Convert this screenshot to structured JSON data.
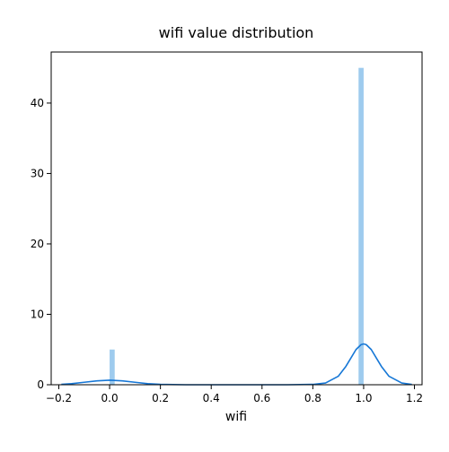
{
  "chart_data": {
    "type": "histogram",
    "title": "wifi value distribution",
    "xlabel": "wifi",
    "ylabel": "",
    "xlim": [
      -0.23,
      1.23
    ],
    "ylim": [
      0,
      47.25
    ],
    "x_ticks": [
      -0.2,
      0.0,
      0.2,
      0.4,
      0.6,
      0.8,
      1.0,
      1.2
    ],
    "x_tick_labels": [
      "−0.2",
      "0.0",
      "0.2",
      "0.4",
      "0.6",
      "0.8",
      "1.0",
      "1.2"
    ],
    "y_ticks": [
      0,
      10,
      20,
      30,
      40
    ],
    "y_tick_labels": [
      "0",
      "10",
      "20",
      "30",
      "40"
    ],
    "bars": [
      {
        "x0": 0.0,
        "x1": 0.02,
        "value": 5
      },
      {
        "x0": 0.98,
        "x1": 1.0,
        "value": 45
      }
    ],
    "kde": {
      "x": [
        -0.19,
        -0.15,
        -0.1,
        -0.05,
        0.0,
        0.05,
        0.1,
        0.15,
        0.2,
        0.3,
        0.4,
        0.5,
        0.6,
        0.7,
        0.8,
        0.85,
        0.9,
        0.93,
        0.95,
        0.97,
        0.99,
        1.0,
        1.01,
        1.03,
        1.05,
        1.07,
        1.1,
        1.15,
        1.19
      ],
      "y": [
        0.05,
        0.15,
        0.35,
        0.55,
        0.65,
        0.55,
        0.35,
        0.15,
        0.05,
        0.0,
        0.0,
        0.0,
        0.0,
        0.0,
        0.05,
        0.25,
        1.2,
        2.6,
        3.8,
        5.0,
        5.7,
        5.8,
        5.7,
        5.0,
        3.8,
        2.6,
        1.2,
        0.25,
        0.05
      ]
    },
    "grid": false,
    "legend": "none",
    "colors": {
      "bar": "#9ecbee",
      "kde": "#1677d6",
      "axis": "#000000"
    }
  }
}
